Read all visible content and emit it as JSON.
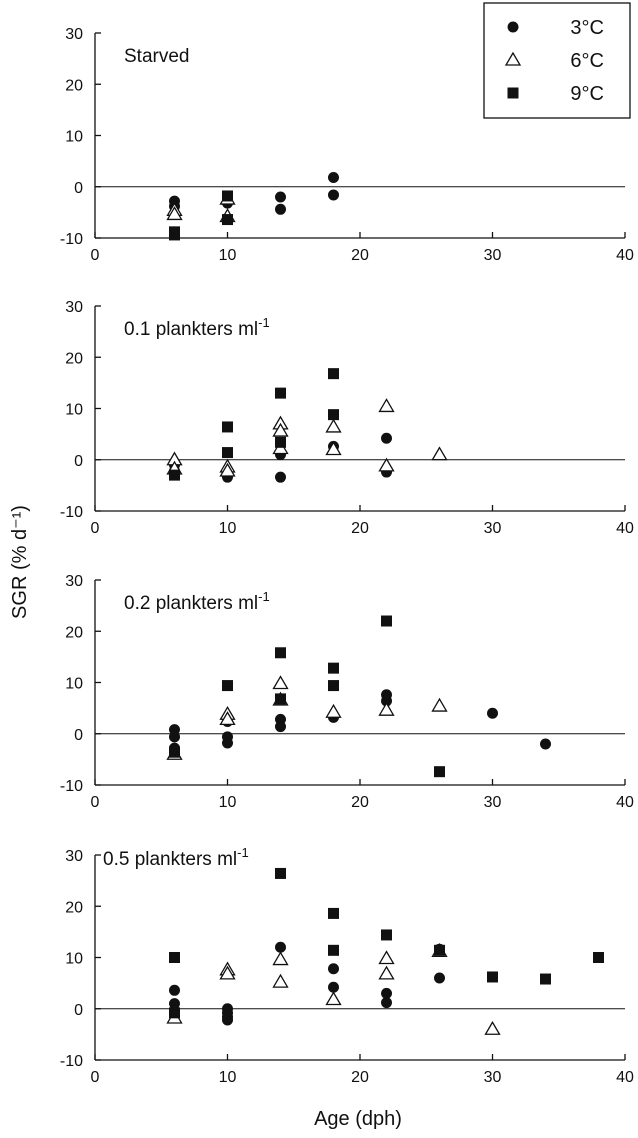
{
  "chart_data": {
    "type": "scatter",
    "ylabel": "SGR (% d⁻¹)",
    "xlabel": "Age (dph)",
    "xlim": [
      0,
      40
    ],
    "ylim": [
      -10,
      30
    ],
    "xticks": [
      0,
      10,
      20,
      30,
      40
    ],
    "yticks": [
      -10,
      0,
      10,
      20,
      30
    ],
    "reference_line_y": 0,
    "legend": {
      "placement": "top-right",
      "entries": [
        {
          "name": "3°C",
          "marker": "circle",
          "color": "#111111"
        },
        {
          "name": "6°C",
          "marker": "open-triangle",
          "color": "#111111"
        },
        {
          "name": "9°C",
          "marker": "square",
          "color": "#111111"
        }
      ]
    },
    "panels": [
      {
        "label": "Starved",
        "label_sup": "",
        "series": [
          {
            "name": "3°C",
            "points": [
              [
                6,
                -2.8
              ],
              [
                6,
                -3.8
              ],
              [
                10,
                -2.2
              ],
              [
                10,
                -3.2
              ],
              [
                14,
                -2
              ],
              [
                14,
                -4.4
              ],
              [
                18,
                1.8
              ],
              [
                18,
                -1.6
              ]
            ]
          },
          {
            "name": "6°C",
            "points": [
              [
                6,
                -4.6
              ],
              [
                6,
                -5.4
              ],
              [
                10,
                -2.4
              ],
              [
                10,
                -5.8
              ]
            ]
          },
          {
            "name": "9°C",
            "points": [
              [
                6,
                -8.8
              ],
              [
                6,
                -9.4
              ],
              [
                10,
                -1.8
              ],
              [
                10,
                -6.4
              ]
            ]
          }
        ]
      },
      {
        "label": "0.1 plankters ml",
        "label_sup": "-1",
        "series": [
          {
            "name": "3°C",
            "points": [
              [
                6,
                -1
              ],
              [
                6,
                -2.2
              ],
              [
                10,
                -2.6
              ],
              [
                10,
                -3.4
              ],
              [
                14,
                1
              ],
              [
                14,
                -3.4
              ],
              [
                18,
                2.6
              ],
              [
                22,
                4.2
              ],
              [
                22,
                -2.4
              ]
            ]
          },
          {
            "name": "6°C",
            "points": [
              [
                6,
                0
              ],
              [
                6,
                -1.8
              ],
              [
                10,
                -1.4
              ],
              [
                10,
                -2.2
              ],
              [
                14,
                7
              ],
              [
                14,
                5.6
              ],
              [
                14,
                2.2
              ],
              [
                18,
                6.4
              ],
              [
                18,
                2
              ],
              [
                22,
                10.4
              ],
              [
                22,
                -1.2
              ],
              [
                26,
                1
              ]
            ]
          },
          {
            "name": "9°C",
            "points": [
              [
                6,
                -3
              ],
              [
                10,
                6.4
              ],
              [
                10,
                1.4
              ],
              [
                14,
                13
              ],
              [
                14,
                3.4
              ],
              [
                18,
                16.8
              ],
              [
                18,
                8.8
              ]
            ]
          }
        ]
      },
      {
        "label": "0.2 plankters ml",
        "label_sup": "-1",
        "series": [
          {
            "name": "3°C",
            "points": [
              [
                6,
                0.8
              ],
              [
                6,
                -0.6
              ],
              [
                6,
                -2.8
              ],
              [
                10,
                -0.6
              ],
              [
                10,
                -1.8
              ],
              [
                10,
                2.4
              ],
              [
                14,
                2.8
              ],
              [
                14,
                1.4
              ],
              [
                18,
                3.2
              ],
              [
                22,
                7.6
              ],
              [
                22,
                6.4
              ],
              [
                30,
                4
              ],
              [
                34,
                -2
              ]
            ]
          },
          {
            "name": "6°C",
            "points": [
              [
                6,
                -4
              ],
              [
                10,
                3.8
              ],
              [
                10,
                2.8
              ],
              [
                14,
                9.8
              ],
              [
                14,
                6.6
              ],
              [
                18,
                4.2
              ],
              [
                22,
                4.6
              ],
              [
                26,
                5.4
              ]
            ]
          },
          {
            "name": "9°C",
            "points": [
              [
                6,
                -3.6
              ],
              [
                10,
                9.4
              ],
              [
                14,
                15.8
              ],
              [
                14,
                6.8
              ],
              [
                18,
                12.8
              ],
              [
                18,
                9.4
              ],
              [
                22,
                22
              ],
              [
                26,
                -7.4
              ]
            ]
          }
        ]
      },
      {
        "label": "0.5 plankters ml",
        "label_sup": "-1",
        "series": [
          {
            "name": "3°C",
            "points": [
              [
                6,
                3.6
              ],
              [
                6,
                1
              ],
              [
                6,
                -0.4
              ],
              [
                10,
                0
              ],
              [
                10,
                -0.8
              ],
              [
                10,
                -1.6
              ],
              [
                10,
                -2.2
              ],
              [
                14,
                12
              ],
              [
                18,
                7.8
              ],
              [
                18,
                4.2
              ],
              [
                22,
                3
              ],
              [
                22,
                1.2
              ],
              [
                26,
                6
              ],
              [
                26,
                11.6
              ]
            ]
          },
          {
            "name": "6°C",
            "points": [
              [
                6,
                -1.8
              ],
              [
                10,
                7.6
              ],
              [
                10,
                6.8
              ],
              [
                14,
                9.6
              ],
              [
                14,
                5.2
              ],
              [
                18,
                1.8
              ],
              [
                22,
                9.8
              ],
              [
                22,
                6.8
              ],
              [
                26,
                11.2
              ],
              [
                30,
                -4
              ]
            ]
          },
          {
            "name": "9°C",
            "points": [
              [
                6,
                10
              ],
              [
                6,
                -0.8
              ],
              [
                14,
                26.4
              ],
              [
                18,
                18.6
              ],
              [
                18,
                11.4
              ],
              [
                22,
                14.4
              ],
              [
                26,
                11.4
              ],
              [
                30,
                6.2
              ],
              [
                34,
                5.8
              ],
              [
                38,
                10
              ]
            ]
          }
        ]
      }
    ]
  }
}
